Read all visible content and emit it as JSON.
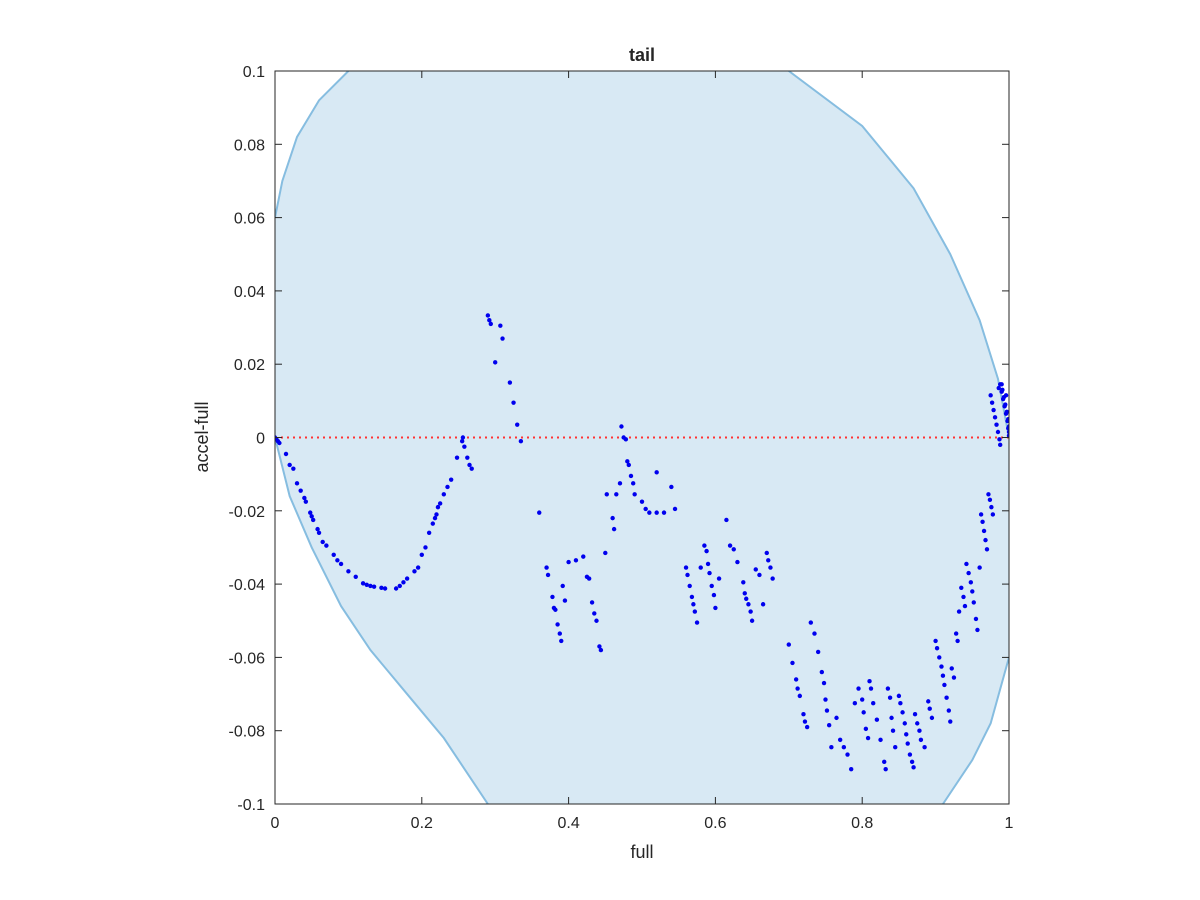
{
  "chart_data": {
    "type": "scatter",
    "title": "tail",
    "xlabel": "full",
    "ylabel": "accel-full",
    "xlim": [
      0,
      1
    ],
    "ylim": [
      -0.1,
      0.1
    ],
    "xticks": [
      "0",
      "0.2",
      "0.4",
      "0.6",
      "0.8",
      "1"
    ],
    "yticks": [
      "-0.1",
      "-0.08",
      "-0.06",
      "-0.04",
      "-0.02",
      "0",
      "0.02",
      "0.04",
      "0.06",
      "0.08",
      "0.1"
    ],
    "grid": false,
    "box": true,
    "colors": {
      "points": "#0000ee",
      "region_fill": "#d8e9f4",
      "region_edge": "#86bde0",
      "reference_line": "#ff3333",
      "axes": "#262626"
    },
    "region": {
      "shape": "ellipse",
      "upper_boundary": [
        [
          0,
          0.06
        ],
        [
          0.01,
          0.07
        ],
        [
          0.03,
          0.082
        ],
        [
          0.06,
          0.092
        ],
        [
          0.1,
          0.1
        ]
      ],
      "upper_boundary_right": [
        [
          0.7,
          0.1
        ],
        [
          0.8,
          0.085
        ],
        [
          0.87,
          0.068
        ],
        [
          0.92,
          0.05
        ],
        [
          0.96,
          0.032
        ],
        [
          0.985,
          0.016
        ],
        [
          1.0,
          0.0
        ]
      ],
      "lower_boundary_left": [
        [
          0.0,
          0.0
        ],
        [
          0.02,
          -0.016
        ],
        [
          0.05,
          -0.03
        ],
        [
          0.09,
          -0.046
        ],
        [
          0.13,
          -0.058
        ],
        [
          0.18,
          -0.07
        ],
        [
          0.23,
          -0.082
        ],
        [
          0.29,
          -0.1
        ]
      ],
      "lower_boundary_right": [
        [
          0.91,
          -0.1
        ],
        [
          0.95,
          -0.088
        ],
        [
          0.975,
          -0.078
        ],
        [
          1.0,
          -0.06
        ]
      ]
    },
    "reference_line": {
      "y": 0,
      "style": "dotted"
    },
    "series": [
      {
        "points": [
          [
            0.0,
            0.0
          ],
          [
            0.002,
            -0.0005
          ],
          [
            0.004,
            -0.001
          ],
          [
            0.006,
            -0.0015
          ],
          [
            0.015,
            -0.0045
          ],
          [
            0.02,
            -0.0075
          ],
          [
            0.025,
            -0.0085
          ],
          [
            0.03,
            -0.0125
          ],
          [
            0.035,
            -0.0145
          ],
          [
            0.04,
            -0.0165
          ],
          [
            0.042,
            -0.0175
          ],
          [
            0.048,
            -0.0205
          ],
          [
            0.05,
            -0.0215
          ],
          [
            0.052,
            -0.0225
          ],
          [
            0.058,
            -0.025
          ],
          [
            0.06,
            -0.026
          ],
          [
            0.065,
            -0.0285
          ],
          [
            0.07,
            -0.0295
          ],
          [
            0.08,
            -0.032
          ],
          [
            0.085,
            -0.0335
          ],
          [
            0.09,
            -0.0345
          ],
          [
            0.1,
            -0.0365
          ],
          [
            0.11,
            -0.038
          ],
          [
            0.12,
            -0.0398
          ],
          [
            0.125,
            -0.0402
          ],
          [
            0.13,
            -0.0405
          ],
          [
            0.135,
            -0.0407
          ],
          [
            0.145,
            -0.041
          ],
          [
            0.15,
            -0.0412
          ],
          [
            0.165,
            -0.0412
          ],
          [
            0.17,
            -0.0405
          ],
          [
            0.175,
            -0.0395
          ],
          [
            0.18,
            -0.0385
          ],
          [
            0.19,
            -0.0365
          ],
          [
            0.195,
            -0.0355
          ],
          [
            0.2,
            -0.032
          ],
          [
            0.205,
            -0.03
          ],
          [
            0.21,
            -0.026
          ],
          [
            0.215,
            -0.0235
          ],
          [
            0.218,
            -0.022
          ],
          [
            0.22,
            -0.021
          ],
          [
            0.222,
            -0.019
          ],
          [
            0.225,
            -0.018
          ],
          [
            0.23,
            -0.0155
          ],
          [
            0.235,
            -0.0135
          ],
          [
            0.24,
            -0.0115
          ],
          [
            0.248,
            -0.0055
          ],
          [
            0.255,
            -0.001
          ],
          [
            0.256,
            0.0
          ],
          [
            0.258,
            -0.0025
          ],
          [
            0.262,
            -0.0055
          ],
          [
            0.265,
            -0.0075
          ],
          [
            0.268,
            -0.0085
          ],
          [
            0.29,
            0.0333
          ],
          [
            0.292,
            0.032
          ],
          [
            0.294,
            0.031
          ],
          [
            0.3,
            0.0205
          ],
          [
            0.307,
            0.0305
          ],
          [
            0.31,
            0.027
          ],
          [
            0.32,
            0.015
          ],
          [
            0.325,
            0.0095
          ],
          [
            0.33,
            0.0035
          ],
          [
            0.335,
            -0.001
          ],
          [
            0.36,
            -0.0205
          ],
          [
            0.37,
            -0.0355
          ],
          [
            0.372,
            -0.0375
          ],
          [
            0.378,
            -0.0435
          ],
          [
            0.38,
            -0.0465
          ],
          [
            0.382,
            -0.047
          ],
          [
            0.385,
            -0.051
          ],
          [
            0.388,
            -0.0535
          ],
          [
            0.39,
            -0.0555
          ],
          [
            0.392,
            -0.0405
          ],
          [
            0.395,
            -0.0445
          ],
          [
            0.4,
            -0.034
          ],
          [
            0.41,
            -0.0335
          ],
          [
            0.42,
            -0.0325
          ],
          [
            0.425,
            -0.038
          ],
          [
            0.428,
            -0.0385
          ],
          [
            0.432,
            -0.045
          ],
          [
            0.435,
            -0.048
          ],
          [
            0.438,
            -0.05
          ],
          [
            0.442,
            -0.057
          ],
          [
            0.444,
            -0.058
          ],
          [
            0.45,
            -0.0315
          ],
          [
            0.452,
            -0.0155
          ],
          [
            0.46,
            -0.022
          ],
          [
            0.462,
            -0.025
          ],
          [
            0.465,
            -0.0155
          ],
          [
            0.47,
            -0.0125
          ],
          [
            0.472,
            0.003
          ],
          [
            0.475,
            0.0
          ],
          [
            0.478,
            -0.0005
          ],
          [
            0.48,
            -0.0065
          ],
          [
            0.482,
            -0.0075
          ],
          [
            0.485,
            -0.0105
          ],
          [
            0.488,
            -0.0125
          ],
          [
            0.49,
            -0.0155
          ],
          [
            0.5,
            -0.0175
          ],
          [
            0.505,
            -0.0195
          ],
          [
            0.51,
            -0.0205
          ],
          [
            0.52,
            -0.0205
          ],
          [
            0.53,
            -0.0205
          ],
          [
            0.52,
            -0.0095
          ],
          [
            0.54,
            -0.0135
          ],
          [
            0.545,
            -0.0195
          ],
          [
            0.56,
            -0.0355
          ],
          [
            0.562,
            -0.0375
          ],
          [
            0.565,
            -0.0405
          ],
          [
            0.568,
            -0.0435
          ],
          [
            0.57,
            -0.0455
          ],
          [
            0.572,
            -0.0475
          ],
          [
            0.575,
            -0.0505
          ],
          [
            0.58,
            -0.0355
          ],
          [
            0.585,
            -0.0295
          ],
          [
            0.588,
            -0.031
          ],
          [
            0.59,
            -0.0345
          ],
          [
            0.592,
            -0.037
          ],
          [
            0.595,
            -0.0405
          ],
          [
            0.598,
            -0.043
          ],
          [
            0.6,
            -0.0465
          ],
          [
            0.605,
            -0.0385
          ],
          [
            0.615,
            -0.0225
          ],
          [
            0.62,
            -0.0295
          ],
          [
            0.625,
            -0.0305
          ],
          [
            0.63,
            -0.034
          ],
          [
            0.638,
            -0.0395
          ],
          [
            0.64,
            -0.0425
          ],
          [
            0.642,
            -0.044
          ],
          [
            0.645,
            -0.0455
          ],
          [
            0.648,
            -0.0475
          ],
          [
            0.65,
            -0.05
          ],
          [
            0.655,
            -0.036
          ],
          [
            0.66,
            -0.0375
          ],
          [
            0.665,
            -0.0455
          ],
          [
            0.67,
            -0.0315
          ],
          [
            0.672,
            -0.0335
          ],
          [
            0.675,
            -0.0355
          ],
          [
            0.678,
            -0.0385
          ],
          [
            0.7,
            -0.0565
          ],
          [
            0.705,
            -0.0615
          ],
          [
            0.71,
            -0.066
          ],
          [
            0.712,
            -0.0685
          ],
          [
            0.715,
            -0.0705
          ],
          [
            0.72,
            -0.0755
          ],
          [
            0.722,
            -0.0775
          ],
          [
            0.725,
            -0.079
          ],
          [
            0.73,
            -0.0505
          ],
          [
            0.735,
            -0.0535
          ],
          [
            0.74,
            -0.0585
          ],
          [
            0.745,
            -0.064
          ],
          [
            0.748,
            -0.067
          ],
          [
            0.75,
            -0.0715
          ],
          [
            0.752,
            -0.0745
          ],
          [
            0.755,
            -0.0785
          ],
          [
            0.758,
            -0.0845
          ],
          [
            0.765,
            -0.0765
          ],
          [
            0.77,
            -0.0825
          ],
          [
            0.775,
            -0.0845
          ],
          [
            0.78,
            -0.0865
          ],
          [
            0.785,
            -0.0905
          ],
          [
            0.79,
            -0.0725
          ],
          [
            0.795,
            -0.0685
          ],
          [
            0.8,
            -0.0715
          ],
          [
            0.802,
            -0.075
          ],
          [
            0.805,
            -0.0795
          ],
          [
            0.808,
            -0.082
          ],
          [
            0.81,
            -0.0665
          ],
          [
            0.812,
            -0.0685
          ],
          [
            0.815,
            -0.0725
          ],
          [
            0.82,
            -0.077
          ],
          [
            0.825,
            -0.0825
          ],
          [
            0.83,
            -0.0885
          ],
          [
            0.832,
            -0.0905
          ],
          [
            0.835,
            -0.0685
          ],
          [
            0.838,
            -0.071
          ],
          [
            0.84,
            -0.0765
          ],
          [
            0.842,
            -0.08
          ],
          [
            0.845,
            -0.0845
          ],
          [
            0.85,
            -0.0705
          ],
          [
            0.852,
            -0.0725
          ],
          [
            0.855,
            -0.075
          ],
          [
            0.858,
            -0.078
          ],
          [
            0.86,
            -0.081
          ],
          [
            0.862,
            -0.0835
          ],
          [
            0.865,
            -0.0865
          ],
          [
            0.868,
            -0.0885
          ],
          [
            0.87,
            -0.09
          ],
          [
            0.872,
            -0.0755
          ],
          [
            0.875,
            -0.078
          ],
          [
            0.878,
            -0.08
          ],
          [
            0.88,
            -0.0825
          ],
          [
            0.885,
            -0.0845
          ],
          [
            0.89,
            -0.072
          ],
          [
            0.892,
            -0.074
          ],
          [
            0.895,
            -0.0765
          ],
          [
            0.9,
            -0.0555
          ],
          [
            0.902,
            -0.0575
          ],
          [
            0.905,
            -0.06
          ],
          [
            0.908,
            -0.0625
          ],
          [
            0.91,
            -0.065
          ],
          [
            0.912,
            -0.0675
          ],
          [
            0.915,
            -0.071
          ],
          [
            0.918,
            -0.0745
          ],
          [
            0.92,
            -0.0775
          ],
          [
            0.922,
            -0.063
          ],
          [
            0.925,
            -0.0655
          ],
          [
            0.928,
            -0.0535
          ],
          [
            0.93,
            -0.0555
          ],
          [
            0.932,
            -0.0475
          ],
          [
            0.935,
            -0.041
          ],
          [
            0.938,
            -0.0435
          ],
          [
            0.94,
            -0.046
          ],
          [
            0.942,
            -0.0345
          ],
          [
            0.945,
            -0.037
          ],
          [
            0.948,
            -0.0395
          ],
          [
            0.95,
            -0.042
          ],
          [
            0.952,
            -0.045
          ],
          [
            0.955,
            -0.0495
          ],
          [
            0.957,
            -0.0525
          ],
          [
            0.96,
            -0.0355
          ],
          [
            0.962,
            -0.021
          ],
          [
            0.964,
            -0.023
          ],
          [
            0.966,
            -0.0255
          ],
          [
            0.968,
            -0.028
          ],
          [
            0.97,
            -0.0305
          ],
          [
            0.972,
            -0.0155
          ],
          [
            0.974,
            -0.017
          ],
          [
            0.976,
            -0.019
          ],
          [
            0.978,
            -0.021
          ],
          [
            0.975,
            0.0115
          ],
          [
            0.977,
            0.0095
          ],
          [
            0.979,
            0.0075
          ],
          [
            0.981,
            0.0055
          ],
          [
            0.983,
            0.0035
          ],
          [
            0.985,
            0.0015
          ],
          [
            0.987,
            -0.0005
          ],
          [
            0.988,
            -0.002
          ],
          [
            0.986,
            0.0135
          ],
          [
            0.988,
            0.0145
          ],
          [
            0.99,
            0.0125
          ],
          [
            0.992,
            0.0105
          ],
          [
            0.994,
            0.0085
          ],
          [
            0.996,
            0.0065
          ],
          [
            0.998,
            0.0045
          ],
          [
            0.999,
            0.0025
          ],
          [
            1.0,
            0.0005
          ],
          [
            0.991,
            0.013
          ],
          [
            0.993,
            0.011
          ],
          [
            0.995,
            0.009
          ],
          [
            0.997,
            0.007
          ],
          [
            0.999,
            0.005
          ],
          [
            1.0,
            0.003
          ],
          [
            0.99,
            0.0145
          ],
          [
            0.996,
            0.0115
          ],
          [
            1.0,
            0.0015
          ]
        ]
      }
    ]
  }
}
